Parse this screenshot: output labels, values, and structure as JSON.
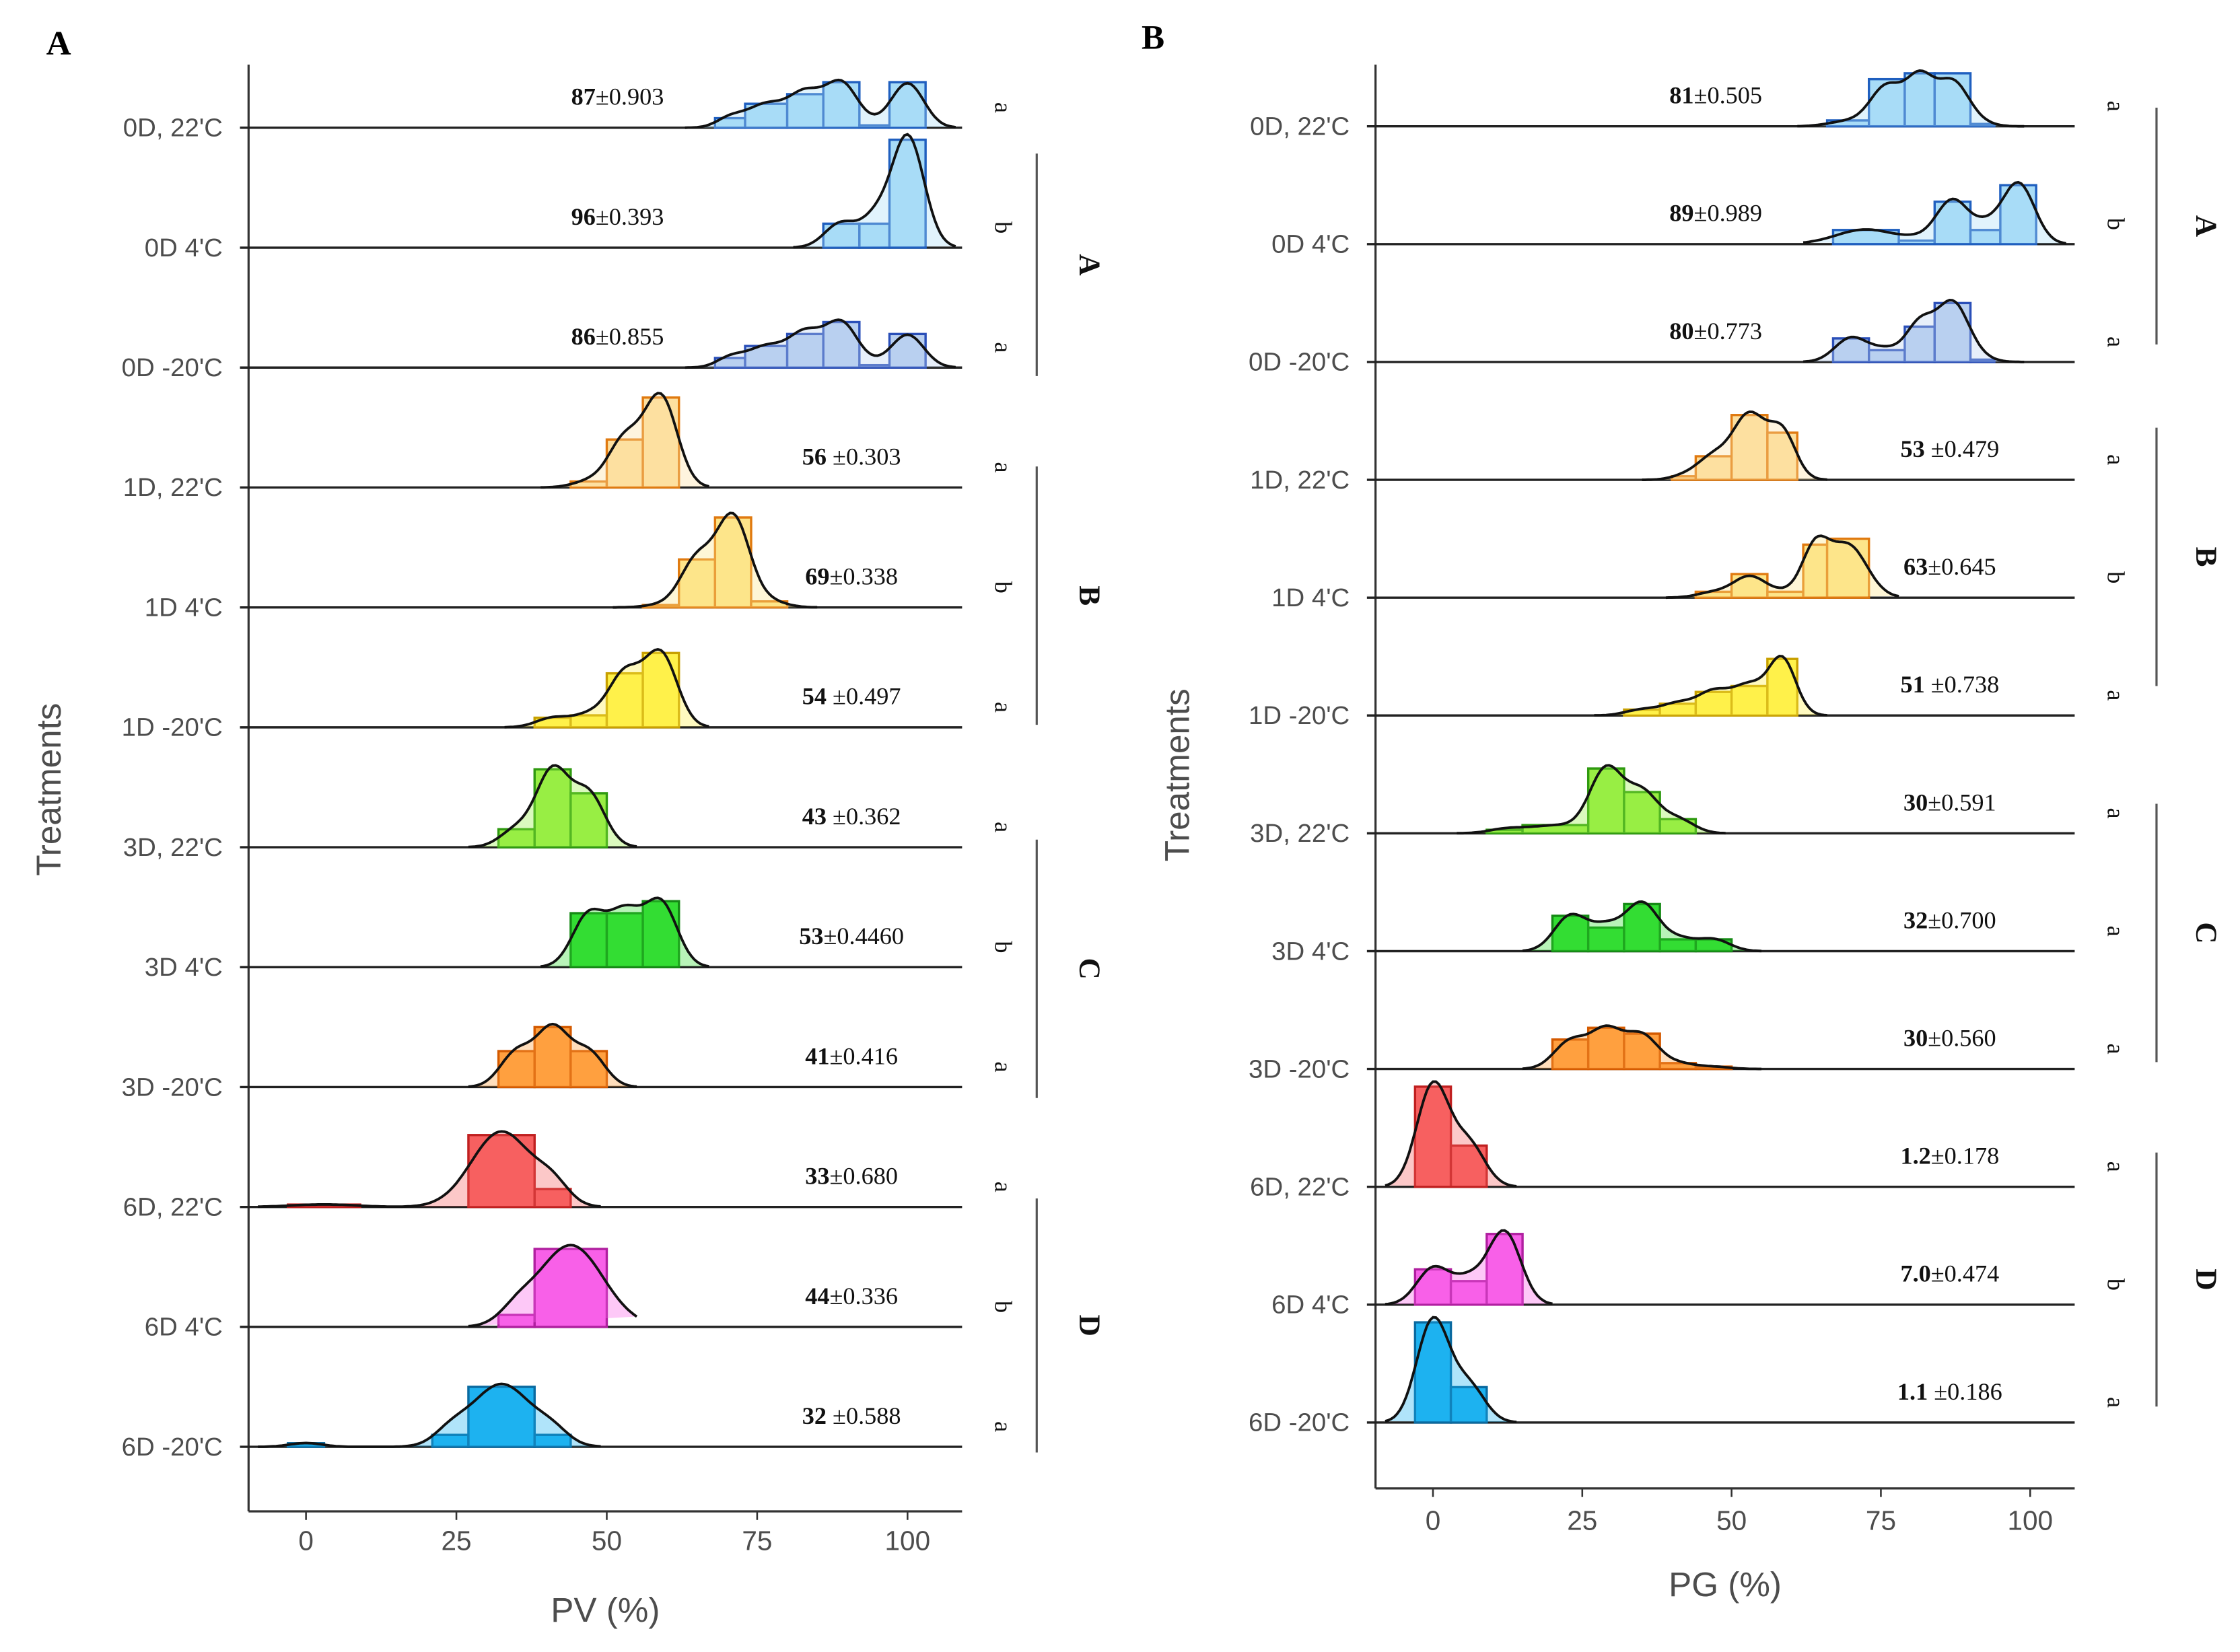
{
  "chart_data": [
    {
      "panel": "A",
      "type": "bar",
      "subtype": "ridgeline histogram with density curves",
      "xlabel": "PV (%)",
      "ylabel": "Treatments",
      "xlim": [
        -10,
        110
      ],
      "xticks": [
        "0",
        "25",
        "50",
        "75",
        "100"
      ],
      "xtick_values": [
        0,
        25,
        50,
        75,
        100
      ],
      "grid": false,
      "groups": [
        {
          "label": "A",
          "rows": [
            0,
            2
          ]
        },
        {
          "label": "B",
          "rows": [
            3,
            5
          ]
        },
        {
          "label": "C",
          "rows": [
            6,
            8
          ]
        },
        {
          "label": "D",
          "rows": [
            9,
            11
          ]
        }
      ],
      "series": [
        {
          "name": "0D, 22'C",
          "mean_label": "87",
          "sd_label": "±0.903",
          "letter": "a",
          "color": "#a8dcf7",
          "edge": "#1f5fbf",
          "bins": [
            [
              68,
              73,
              0.08
            ],
            [
              73,
              80,
              0.2
            ],
            [
              80,
              86,
              0.28
            ],
            [
              86,
              92,
              0.38
            ],
            [
              92,
              97,
              0.02
            ],
            [
              97,
              103,
              0.38
            ]
          ]
        },
        {
          "name": "0D  4'C",
          "mean_label": "96",
          "sd_label": "±0.393",
          "letter": "b",
          "color": "#a8dcf7",
          "edge": "#1f5fbf",
          "bins": [
            [
              86,
              92,
              0.2
            ],
            [
              92,
              97,
              0.2
            ],
            [
              97,
              103,
              0.9
            ]
          ]
        },
        {
          "name": "0D  -20'C",
          "mean_label": "86",
          "sd_label": "±0.855",
          "letter": "a",
          "color": "#b9d0f0",
          "edge": "#2a4fb8",
          "bins": [
            [
              68,
              73,
              0.08
            ],
            [
              73,
              80,
              0.18
            ],
            [
              80,
              86,
              0.28
            ],
            [
              86,
              92,
              0.38
            ],
            [
              92,
              97,
              0.02
            ],
            [
              97,
              103,
              0.28
            ]
          ]
        },
        {
          "name": "1D, 22'C",
          "mean_label": "56 ",
          "sd_label": "±0.303",
          "letter": "a",
          "color": "#fde0a0",
          "edge": "#e07a10",
          "bins": [
            [
              44,
              50,
              0.05
            ],
            [
              50,
              56,
              0.4
            ],
            [
              56,
              62,
              0.75
            ]
          ]
        },
        {
          "name": "1D  4'C",
          "mean_label": "69",
          "sd_label": "±0.338",
          "letter": "b",
          "color": "#fde58a",
          "edge": "#e07a10",
          "bins": [
            [
              56,
              62,
              0.02
            ],
            [
              62,
              68,
              0.4
            ],
            [
              68,
              74,
              0.75
            ],
            [
              74,
              80,
              0.05
            ]
          ]
        },
        {
          "name": "1D  -20'C",
          "mean_label": "54 ",
          "sd_label": "±0.497",
          "letter": "a",
          "color": "#fff24a",
          "edge": "#c8a000",
          "bins": [
            [
              38,
              44,
              0.08
            ],
            [
              44,
              50,
              0.1
            ],
            [
              50,
              56,
              0.45
            ],
            [
              56,
              62,
              0.62
            ]
          ]
        },
        {
          "name": "3D, 22'C",
          "mean_label": "43 ",
          "sd_label": "±0.362",
          "letter": "a",
          "color": "#99ee44",
          "edge": "#2f9a10",
          "bins": [
            [
              32,
              38,
              0.15
            ],
            [
              38,
              44,
              0.65
            ],
            [
              44,
              50,
              0.45
            ]
          ]
        },
        {
          "name": "3D  4'C",
          "mean_label": "53",
          "sd_label": "±0.4460",
          "letter": "b",
          "color": "#33dd33",
          "edge": "#158a15",
          "bins": [
            [
              44,
              50,
              0.45
            ],
            [
              50,
              56,
              0.45
            ],
            [
              56,
              62,
              0.55
            ]
          ]
        },
        {
          "name": "3D  -20'C",
          "mean_label": "41",
          "sd_label": "±0.416",
          "letter": "a",
          "color": "#ffa040",
          "edge": "#d45a00",
          "bins": [
            [
              32,
              38,
              0.3
            ],
            [
              38,
              44,
              0.5
            ],
            [
              44,
              50,
              0.3
            ]
          ]
        },
        {
          "name": "6D, 22'C",
          "mean_label": "33",
          "sd_label": "±0.680",
          "letter": "a",
          "color": "#f76060",
          "edge": "#c02020",
          "bins": [
            [
              -3,
              9,
              0.02
            ],
            [
              27,
              38,
              0.6
            ],
            [
              38,
              44,
              0.15
            ]
          ]
        },
        {
          "name": "6D  4'C",
          "mean_label": "44",
          "sd_label": "±0.336",
          "letter": "b",
          "color": "#f860e8",
          "edge": "#b020a0",
          "bins": [
            [
              32,
              38,
              0.1
            ],
            [
              38,
              50,
              0.65
            ]
          ]
        },
        {
          "name": "6D  -20'C",
          "mean_label": "32 ",
          "sd_label": "±0.588",
          "letter": "a",
          "color": "#1eb2f0",
          "edge": "#0a6aa0",
          "bins": [
            [
              -3,
              3,
              0.03
            ],
            [
              21,
              27,
              0.1
            ],
            [
              27,
              38,
              0.5
            ],
            [
              38,
              44,
              0.1
            ]
          ]
        }
      ]
    },
    {
      "panel": "B",
      "type": "bar",
      "subtype": "ridgeline histogram with density curves",
      "xlabel": "PG (%)",
      "ylabel": "Treatments",
      "xlim": [
        -10,
        110
      ],
      "xticks": [
        "0",
        "25",
        "50",
        "75",
        "100"
      ],
      "xtick_values": [
        0,
        25,
        50,
        75,
        100
      ],
      "grid": false,
      "groups": [
        {
          "label": "A",
          "rows": [
            0,
            2
          ]
        },
        {
          "label": "B",
          "rows": [
            3,
            5
          ]
        },
        {
          "label": "C",
          "rows": [
            6,
            8
          ]
        },
        {
          "label": "D",
          "rows": [
            9,
            11
          ]
        }
      ],
      "series": [
        {
          "name": "0D, 22'C",
          "mean_label": "81",
          "sd_label": "±0.505",
          "letter": "a",
          "color": "#a8dcf7",
          "edge": "#1f5fbf",
          "bins": [
            [
              66,
              73,
              0.05
            ],
            [
              73,
              79,
              0.4
            ],
            [
              79,
              84,
              0.45
            ],
            [
              84,
              90,
              0.45
            ],
            [
              90,
              94,
              0.02
            ]
          ]
        },
        {
          "name": "0D  4'C",
          "mean_label": "89",
          "sd_label": "±0.989",
          "letter": "b",
          "color": "#a8dcf7",
          "edge": "#1f5fbf",
          "bins": [
            [
              67,
              78,
              0.12
            ],
            [
              78,
              84,
              0.03
            ],
            [
              84,
              90,
              0.36
            ],
            [
              90,
              95,
              0.12
            ],
            [
              95,
              101,
              0.5
            ]
          ]
        },
        {
          "name": "0D  -20'C",
          "mean_label": "80",
          "sd_label": "±0.773",
          "letter": "a",
          "color": "#b9d0f0",
          "edge": "#2a4fb8",
          "bins": [
            [
              67,
              73,
              0.2
            ],
            [
              73,
              79,
              0.1
            ],
            [
              79,
              84,
              0.3
            ],
            [
              84,
              90,
              0.5
            ],
            [
              90,
              94,
              0.02
            ]
          ]
        },
        {
          "name": "1D, 22'C",
          "mean_label": "53 ",
          "sd_label": "±0.479",
          "letter": "a",
          "color": "#fde0a0",
          "edge": "#e07a10",
          "bins": [
            [
              40,
              44,
              0.03
            ],
            [
              44,
              50,
              0.2
            ],
            [
              50,
              56,
              0.55
            ],
            [
              56,
              61,
              0.4
            ]
          ]
        },
        {
          "name": "1D  4'C",
          "mean_label": "63",
          "sd_label": "±0.645",
          "letter": "b",
          "color": "#fde58a",
          "edge": "#e07a10",
          "bins": [
            [
              44,
              50,
              0.05
            ],
            [
              50,
              56,
              0.2
            ],
            [
              56,
              62,
              0.05
            ],
            [
              62,
              66,
              0.45
            ],
            [
              66,
              73,
              0.5
            ]
          ]
        },
        {
          "name": "1D  -20'C",
          "mean_label": "51 ",
          "sd_label": "±0.738",
          "letter": "a",
          "color": "#fff24a",
          "edge": "#c8a000",
          "bins": [
            [
              32,
              38,
              0.05
            ],
            [
              38,
              44,
              0.1
            ],
            [
              44,
              50,
              0.2
            ],
            [
              50,
              56,
              0.25
            ],
            [
              56,
              61,
              0.48
            ]
          ]
        },
        {
          "name": "3D, 22'C",
          "mean_label": "30",
          "sd_label": "±0.591",
          "letter": "a",
          "color": "#99ee44",
          "edge": "#2f9a10",
          "bins": [
            [
              9,
              15,
              0.03
            ],
            [
              15,
              26,
              0.07
            ],
            [
              26,
              32,
              0.55
            ],
            [
              32,
              38,
              0.35
            ],
            [
              38,
              44,
              0.12
            ]
          ]
        },
        {
          "name": "3D  4'C",
          "mean_label": "32",
          "sd_label": "±0.700",
          "letter": "a",
          "color": "#33dd33",
          "edge": "#158a15",
          "bins": [
            [
              20,
              26,
              0.3
            ],
            [
              26,
              32,
              0.2
            ],
            [
              32,
              38,
              0.4
            ],
            [
              38,
              44,
              0.1
            ],
            [
              44,
              50,
              0.1
            ]
          ]
        },
        {
          "name": "3D  -20'C",
          "mean_label": "30",
          "sd_label": "±0.560",
          "letter": "a",
          "color": "#ffa040",
          "edge": "#d45a00",
          "bins": [
            [
              20,
              26,
              0.25
            ],
            [
              26,
              32,
              0.35
            ],
            [
              32,
              38,
              0.3
            ],
            [
              38,
              44,
              0.05
            ],
            [
              44,
              50,
              0.02
            ]
          ]
        },
        {
          "name": "6D, 22'C",
          "mean_label": "1.2",
          "sd_label": "±0.178",
          "letter": "a",
          "color": "#f76060",
          "edge": "#c02020",
          "bins": [
            [
              -3,
              3,
              0.85
            ],
            [
              3,
              9,
              0.35
            ]
          ]
        },
        {
          "name": "6D  4'C",
          "mean_label": "7.0",
          "sd_label": "±0.474",
          "letter": "b",
          "color": "#f860e8",
          "edge": "#b020a0",
          "bins": [
            [
              -3,
              3,
              0.3
            ],
            [
              3,
              9,
              0.2
            ],
            [
              9,
              15,
              0.6
            ]
          ]
        },
        {
          "name": "6D  -20'C",
          "mean_label": "1.1 ",
          "sd_label": "±0.186",
          "letter": "a",
          "color": "#1eb2f0",
          "edge": "#0a6aa0",
          "bins": [
            [
              -3,
              3,
              0.85
            ],
            [
              3,
              9,
              0.3
            ]
          ]
        }
      ]
    }
  ]
}
